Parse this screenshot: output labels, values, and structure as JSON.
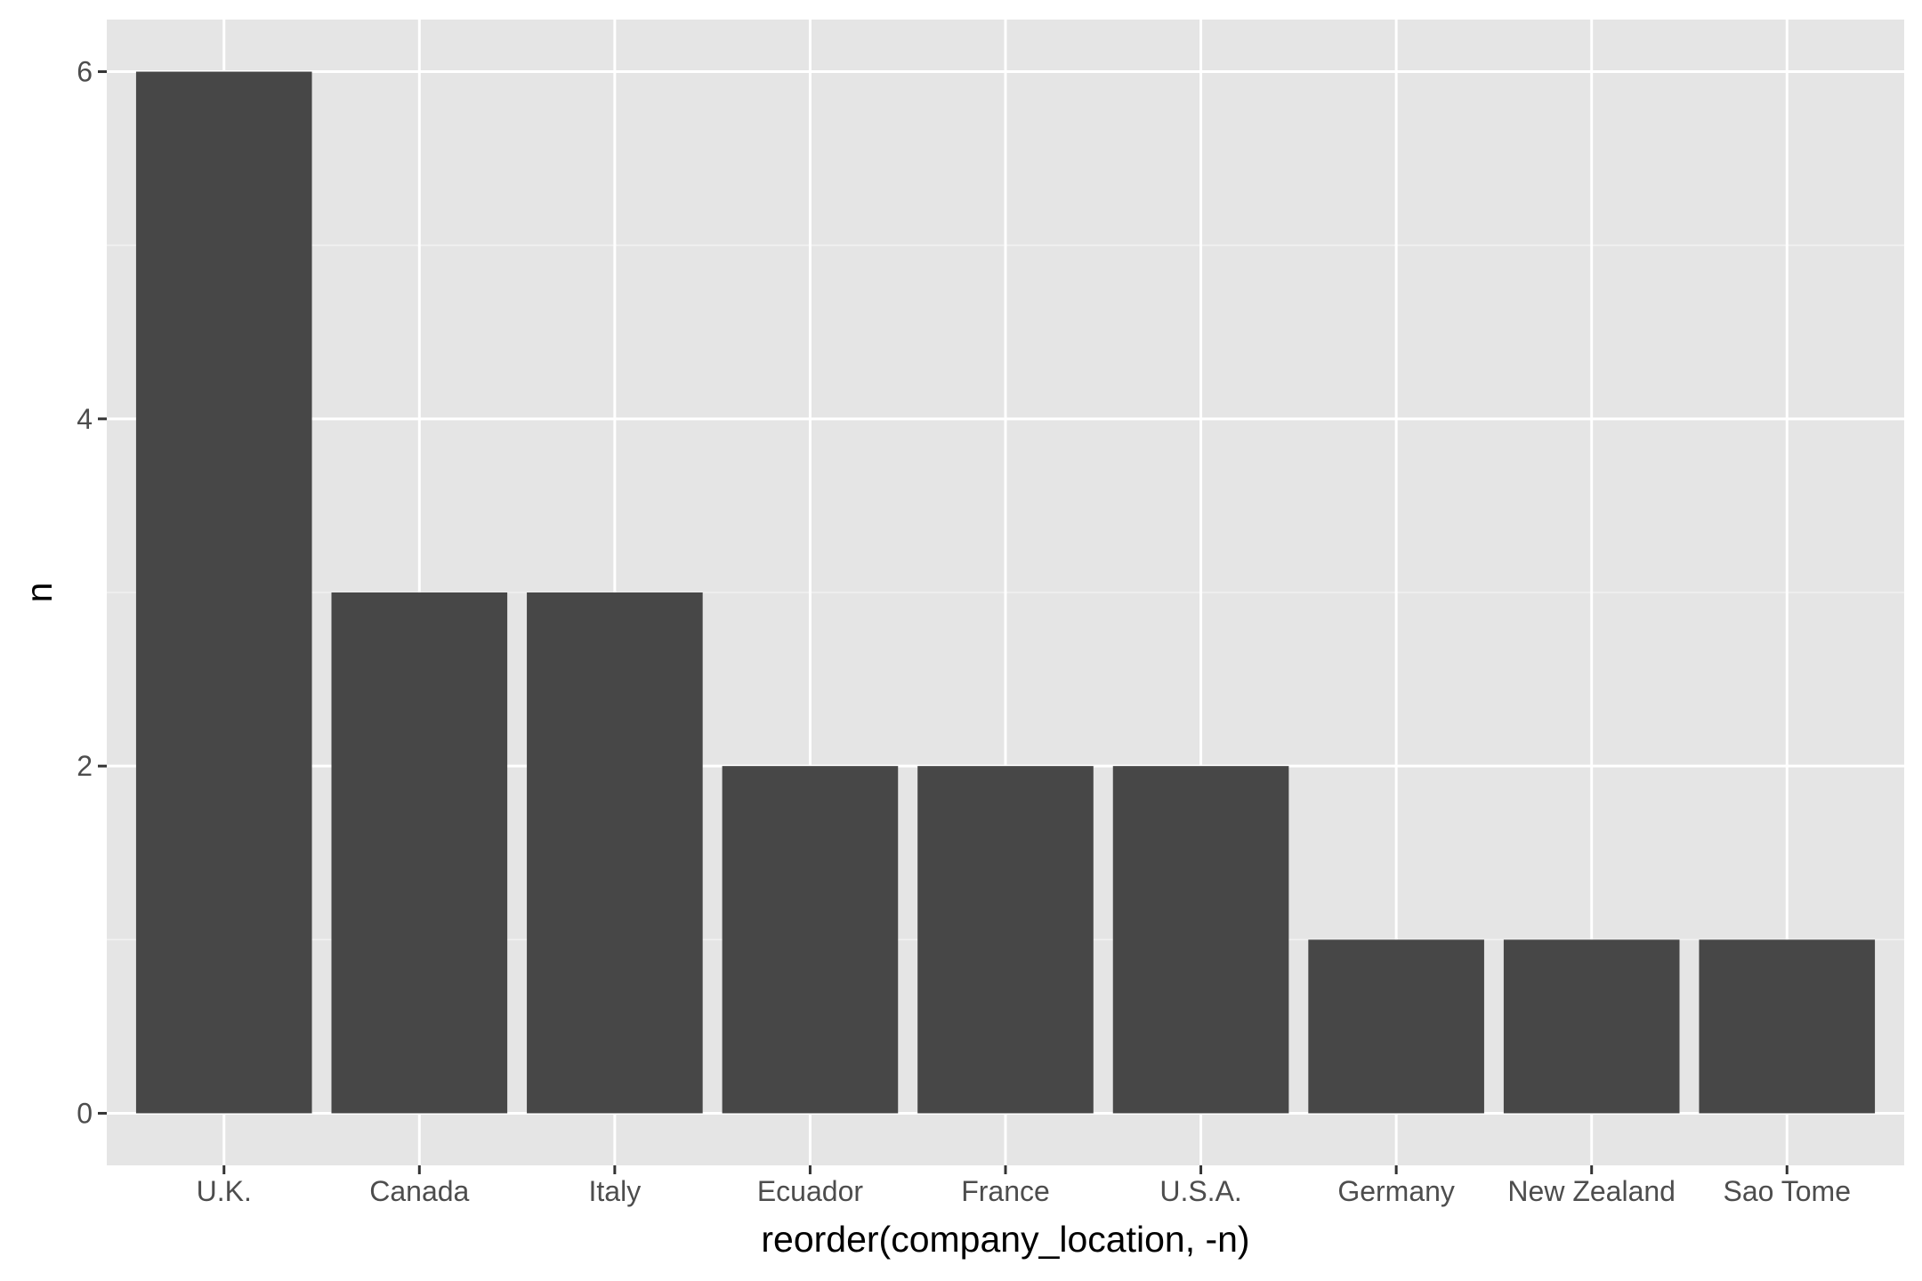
{
  "chart_data": {
    "type": "bar",
    "categories": [
      "U.K.",
      "Canada",
      "Italy",
      "Ecuador",
      "France",
      "U.S.A.",
      "Germany",
      "New Zealand",
      "Sao Tome"
    ],
    "values": [
      6,
      3,
      3,
      2,
      2,
      2,
      1,
      1,
      1
    ],
    "title": "",
    "xlabel": "reorder(company_location, -n)",
    "ylabel": "n",
    "ylim": [
      -0.3,
      6.3
    ],
    "yticks": [
      0,
      2,
      4,
      6
    ],
    "ytick_labels": [
      "0",
      "2",
      "4",
      "6"
    ],
    "grid": true,
    "legend": "none",
    "colors": {
      "panel_background": "#e5e5e5",
      "grid_major": "#ffffff",
      "grid_minor": "#f2f2f2",
      "bar_fill": "#474747",
      "tick_color": "#333333",
      "tick_label_color": "#4d4d4d",
      "axis_title_color": "#000000"
    }
  }
}
